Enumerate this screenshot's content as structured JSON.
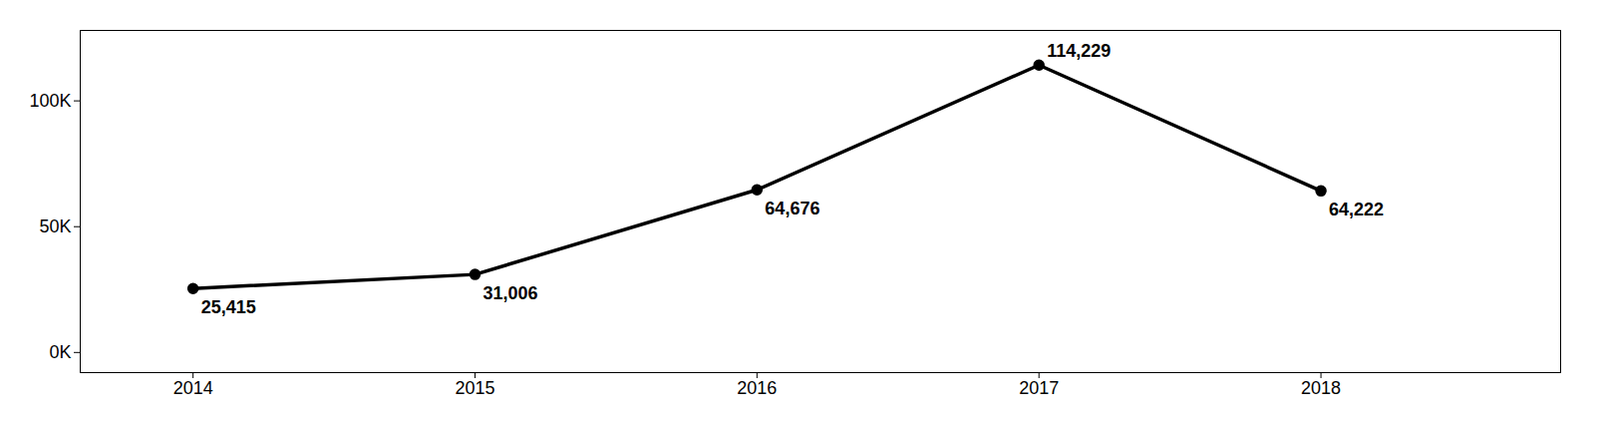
{
  "chart_data": {
    "type": "line",
    "x": [
      2014,
      2015,
      2016,
      2017,
      2018
    ],
    "values": [
      25415,
      31006,
      64676,
      114229,
      64222
    ],
    "value_labels": [
      "25,415",
      "31,006",
      "64,676",
      "114,229",
      "64,222"
    ],
    "data_labels": true,
    "color": "#000000",
    "marker": "circle",
    "xlim": [
      2013.6,
      2018.85
    ],
    "xticks": [
      2014,
      2015,
      2016,
      2017,
      2018
    ],
    "ylim": [
      -8000,
      128000
    ],
    "yticks": [
      {
        "value": 0,
        "label": "0K"
      },
      {
        "value": 50000,
        "label": "50K"
      },
      {
        "value": 100000,
        "label": "100K"
      }
    ],
    "grid": false
  }
}
